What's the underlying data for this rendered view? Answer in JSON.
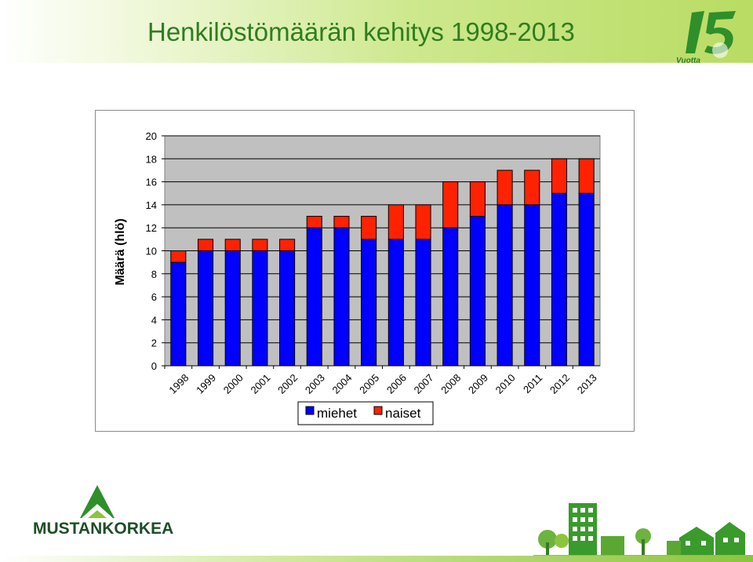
{
  "header": {
    "title": "Henkilöstömäärän kehitys 1998-2013"
  },
  "logos": {
    "anniversary_number": "15",
    "anniversary_text": "Vuotta",
    "company": "MUSTANKORKEA"
  },
  "colors": {
    "miehet": "#0000ff",
    "naiset": "#ff2200",
    "plot_bg": "#c0c0c0",
    "title": "#2f7d1e"
  },
  "chart_data": {
    "type": "bar",
    "stacked": true,
    "ylabel": "Määrä (hlö)",
    "xlabel": "",
    "ylim": [
      0,
      20
    ],
    "yticks": [
      0,
      2,
      4,
      6,
      8,
      10,
      12,
      14,
      16,
      18,
      20
    ],
    "grid": true,
    "legend_position": "bottom",
    "categories": [
      "1998",
      "1999",
      "2000",
      "2001",
      "2002",
      "2003",
      "2004",
      "2005",
      "2006",
      "2007",
      "2008",
      "2009",
      "2010",
      "2011",
      "2012",
      "2013"
    ],
    "series": [
      {
        "name": "miehet",
        "values": [
          9,
          10,
          10,
          10,
          10,
          12,
          12,
          11,
          11,
          11,
          12,
          13,
          14,
          14,
          15,
          15
        ]
      },
      {
        "name": "naiset",
        "values": [
          1,
          1,
          1,
          1,
          1,
          1,
          1,
          2,
          3,
          3,
          4,
          3,
          3,
          3,
          3,
          3
        ]
      }
    ]
  }
}
